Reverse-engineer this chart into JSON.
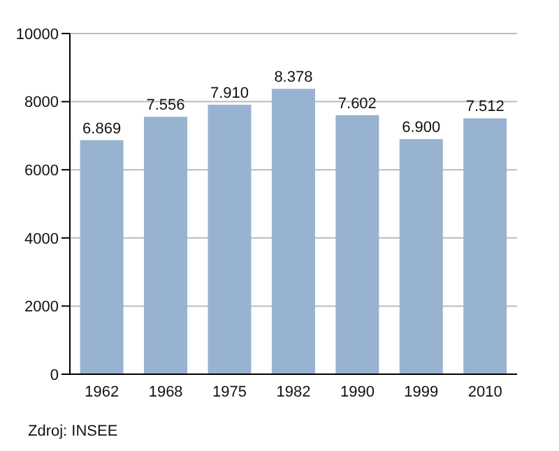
{
  "chart_data": {
    "type": "bar",
    "categories": [
      "1962",
      "1968",
      "1975",
      "1982",
      "1990",
      "1999",
      "2010"
    ],
    "values": [
      6869,
      7556,
      7910,
      8378,
      7602,
      6900,
      7512
    ],
    "value_labels": [
      "6.869",
      "7.556",
      "7.910",
      "8.378",
      "7.602",
      "6.900",
      "7.512"
    ],
    "color": "#98b3cf",
    "ylim": [
      0,
      10000
    ],
    "yticks": [
      0,
      2000,
      4000,
      6000,
      8000,
      10000
    ],
    "grid": "y",
    "annotations": [
      "Zdroj: INSEE"
    ]
  }
}
